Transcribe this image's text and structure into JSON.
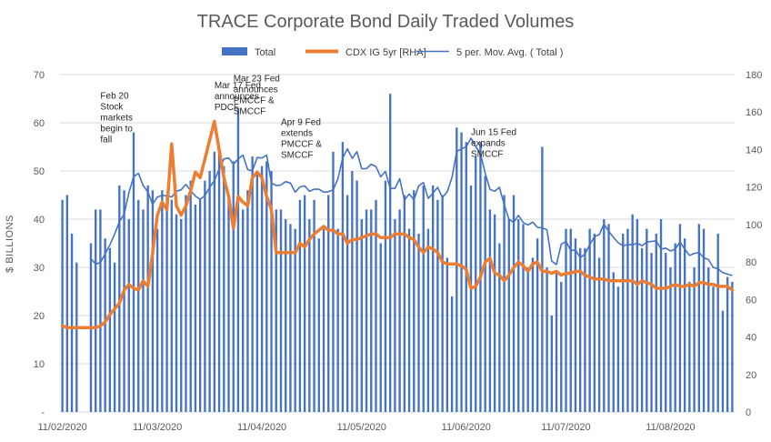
{
  "chart_data": {
    "type": "bar",
    "title": "TRACE Corporate Bond Daily Traded Volumes",
    "xlabel": "",
    "ylabel": "$ BILLIONS",
    "ylim": [
      0,
      70
    ],
    "y2lim": [
      0,
      180
    ],
    "yticks": [
      "-",
      "10",
      "20",
      "30",
      "40",
      "50",
      "60",
      "70"
    ],
    "y2ticks": [
      "0",
      "20",
      "40",
      "60",
      "80",
      "100",
      "120",
      "140",
      "160",
      "180"
    ],
    "xticks": [
      {
        "label": "11/02/2020",
        "index": 0
      },
      {
        "label": "11/03/2020",
        "index": 20
      },
      {
        "label": "11/04/2020",
        "index": 42
      },
      {
        "label": "11/05/2020",
        "index": 63
      },
      {
        "label": "11/06/2020",
        "index": 85
      },
      {
        "label": "11/07/2020",
        "index": 106
      },
      {
        "label": "11/08/2020",
        "index": 128
      }
    ],
    "grid": true,
    "legend_position": "top",
    "colors": {
      "total": "#4472c4",
      "cdx": "#ed7d31",
      "avg": "#4472c4"
    },
    "series": [
      {
        "name": "Total",
        "type": "bar",
        "axis": "left",
        "values": [
          44,
          45,
          37,
          31,
          0,
          0,
          35,
          42,
          42,
          36,
          34,
          31,
          47,
          46,
          40,
          58,
          44,
          42,
          47,
          46,
          38,
          46,
          45,
          44,
          41,
          40,
          45,
          48,
          43,
          44,
          48,
          50,
          54,
          54,
          51,
          44,
          52,
          63,
          42,
          46,
          53,
          50,
          51,
          52,
          50,
          42,
          42,
          40,
          39,
          38,
          44,
          45,
          40,
          44,
          36,
          38,
          45,
          54,
          38,
          56,
          45,
          50,
          48,
          40,
          42,
          42,
          44,
          35,
          48,
          66,
          40,
          42,
          45,
          38,
          46,
          37,
          47,
          38,
          47,
          44,
          45,
          32,
          24,
          59,
          58,
          56,
          47,
          53,
          56,
          49,
          42,
          41,
          35,
          45,
          40,
          45,
          40,
          39,
          30,
          32,
          36,
          55,
          30,
          20,
          29,
          27,
          38,
          38,
          36,
          34,
          34,
          38,
          37,
          32,
          40,
          39,
          29,
          26,
          37,
          38,
          41,
          40,
          34,
          38,
          33,
          37,
          40,
          33,
          30,
          35,
          39,
          36,
          27,
          30,
          39,
          38,
          30,
          26,
          37,
          21,
          28,
          27
        ]
      },
      {
        "name": "CDX IG 5yr [RHA]",
        "type": "line",
        "axis": "right",
        "values": [
          46,
          45,
          45,
          45,
          45,
          45,
          45,
          45,
          46,
          48,
          52,
          55,
          58,
          65,
          68,
          66,
          65,
          70,
          67,
          85,
          105,
          112,
          108,
          143,
          110,
          105,
          110,
          118,
          128,
          125,
          135,
          145,
          155,
          140,
          125,
          115,
          98,
          115,
          112,
          110,
          125,
          128,
          125,
          115,
          108,
          85,
          85,
          85,
          85,
          85,
          90,
          88,
          92,
          95,
          97,
          99,
          97,
          97,
          95,
          95,
          90,
          92,
          92,
          93,
          94,
          95,
          95,
          93,
          93,
          93,
          95,
          95,
          95,
          93,
          92,
          88,
          85,
          88,
          87,
          85,
          80,
          79,
          79,
          79,
          78,
          76,
          66,
          67,
          72,
          80,
          82,
          74,
          73,
          70,
          73,
          77,
          80,
          78,
          75,
          79,
          80,
          75,
          75,
          74,
          75,
          73,
          74,
          74,
          75,
          75,
          73,
          72,
          71,
          71,
          71,
          70,
          70,
          70,
          70,
          70,
          70,
          68,
          70,
          69,
          68,
          66,
          66,
          66,
          67,
          68,
          67,
          67,
          68,
          67,
          69,
          69,
          68,
          68,
          67,
          67,
          67,
          65
        ]
      },
      {
        "name": "5 per. Mov. Avg. ( Total )",
        "type": "line",
        "axis": "left",
        "values": [
          null,
          null,
          null,
          null,
          null,
          null,
          31.8,
          30.7,
          31.0,
          32.8,
          34.7,
          36.9,
          39.5,
          41.0,
          45.5,
          48.8,
          49.5,
          47.0,
          45.6,
          43.1,
          44.6,
          44.9,
          44.9,
          44.6,
          45.8,
          46.1,
          47.2,
          45.9,
          44.8,
          44.1,
          44.9,
          46.6,
          48.0,
          50.4,
          52.5,
          52.7,
          51.4,
          52.5,
          53.3,
          50.3,
          50.0,
          52.8,
          52.7,
          53.3,
          47.5,
          47.0,
          47.1,
          47.8,
          47.5,
          45.6,
          46.7,
          46.9,
          45.8,
          46.2,
          46.2,
          45.6,
          45.7,
          46.1,
          48.4,
          52.7,
          54.6,
          52.6,
          54.0,
          50.5,
          50.5,
          51.4,
          50.9,
          48.8,
          49.9,
          46.4,
          46.4,
          48.4,
          44.0,
          45.2,
          44.0,
          46.9,
          47.6,
          44.3,
          45.4,
          46.6,
          44.5,
          45.7,
          48.6,
          54.0,
          54.6,
          55.0,
          56.8,
          55.1,
          53.6,
          49.5,
          46.2,
          45.8,
          46.6,
          43.0,
          40.0,
          39.3,
          40.8,
          39.3,
          38.8,
          39.4,
          38.3,
          38.2,
          37.8,
          31.3,
          30.6,
          34.8,
          35.4,
          33.5,
          33.6,
          32.0,
          32.8,
          34.7,
          36.4,
          36.8,
          39.0,
          37.5,
          36.2,
          35.1,
          34.5,
          34.7,
          34.7,
          35.0,
          34.5,
          35.2,
          35.4,
          35.5,
          33.8,
          34.0,
          33.4,
          33.8,
          35.3,
          33.8,
          32.5,
          32.9,
          33.1,
          32.0,
          31.6,
          30.0,
          29.7,
          28.9,
          28.6,
          28.3
        ]
      }
    ],
    "annotations": [
      {
        "lines": [
          "Feb 20",
          "Stock",
          "markets",
          "begin to",
          "fall"
        ],
        "index": 8,
        "value": 65
      },
      {
        "lines": [
          "Mar 17 Fed",
          "announces",
          "PDCF"
        ],
        "index": 32,
        "value": 67.2
      },
      {
        "lines": [
          "Mar 23 Fed",
          "announces",
          "PMCCF &",
          "SMCCF"
        ],
        "index": 36,
        "value": 68.6
      },
      {
        "lines": [
          "Apr 9 Fed",
          "extends",
          "PMCCF &",
          "SMCCF"
        ],
        "index": 46,
        "value": 59.5
      },
      {
        "lines": [
          "Jun 15 Fed",
          "expands",
          "SMCCF"
        ],
        "index": 86,
        "value": 57.5
      }
    ]
  }
}
